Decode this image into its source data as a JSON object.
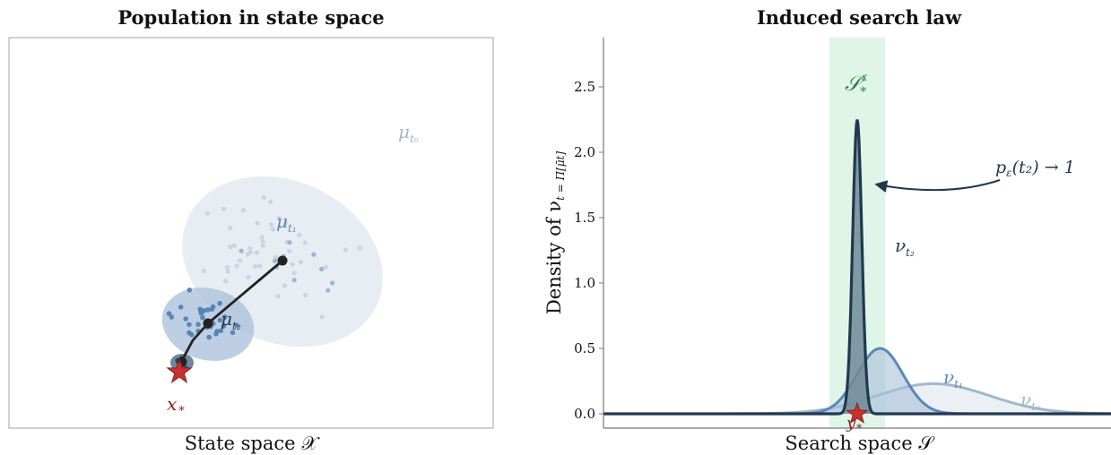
{
  "left_panel": {
    "title": "Population in state space",
    "xlabel": "State space 𝒳",
    "labels": {
      "mu_t0": "μ",
      "mu_t0_sub": "t₀",
      "mu_t1": "μ",
      "mu_t1_sub": "t₁",
      "mu_t2": "μ",
      "mu_t2_sub": "t₂",
      "x_star": "x",
      "x_star_sub": "*"
    },
    "colors": {
      "cloud_t0": "#e8edf3",
      "cloud_t1": "#a9bfd9",
      "cloud_t2": "#54728f",
      "trajectory": "#222222",
      "star": "#cc2f2f"
    }
  },
  "right_panel": {
    "title": "Induced search law",
    "xlabel": "Search space 𝒮",
    "ylabel": "Density of ν",
    "ylabel_suffix": "t = Π[μ̄t]",
    "annotations": {
      "target_set": "𝒮",
      "target_set_sup": "ε",
      "target_set_sub": "*",
      "prob": "p",
      "prob_sub": "ε",
      "prob_rest": "(t₂) → 1",
      "nu_t2": "ν",
      "nu_t2_sub": "t₂",
      "nu_t1": "ν",
      "nu_t1_sub": "t₁",
      "nu_t0": "ν",
      "nu_t0_sub": "t₀",
      "y_star": "y",
      "y_star_sub": "*"
    },
    "colors": {
      "band": "#dff5e8",
      "nu_t2_line": "#22384f",
      "nu_t2_fill": "#6f8a96",
      "nu_t1_line": "#5c88b8",
      "nu_t1_fill": "#a9bfd9",
      "nu_t0_line": "#a3b6cc",
      "nu_t0_fill": "#e3e9f0",
      "annotation_green": "#2e7d4a",
      "annotation_navy": "#22384f",
      "star": "#cc2f2f"
    }
  },
  "chart_data": {
    "type": "area",
    "title": "Induced search law",
    "xlabel": "Search space 𝒮",
    "ylabel": "Density of ν_t = Π[μ̄_t]",
    "ylim": [
      0,
      2.9
    ],
    "yticks": [
      "0.0",
      "0.5",
      "1.0",
      "1.5",
      "2.0",
      "2.5"
    ],
    "ytick_values": [
      0,
      0.5,
      1.0,
      1.5,
      2.0,
      2.5
    ],
    "xlim": [
      -1.0,
      1.0
    ],
    "target_band": [
      -0.11,
      0.11
    ],
    "y_star_x": 0.0,
    "series": [
      {
        "name": "ν_t0",
        "mu": 0.3,
        "sigma": 0.22,
        "peak": 0.23
      },
      {
        "name": "ν_t1",
        "mu": 0.09,
        "sigma": 0.09,
        "peak": 0.5
      },
      {
        "name": "ν_t2",
        "mu": 0.0,
        "sigma": 0.018,
        "peak": 2.25
      }
    ]
  }
}
